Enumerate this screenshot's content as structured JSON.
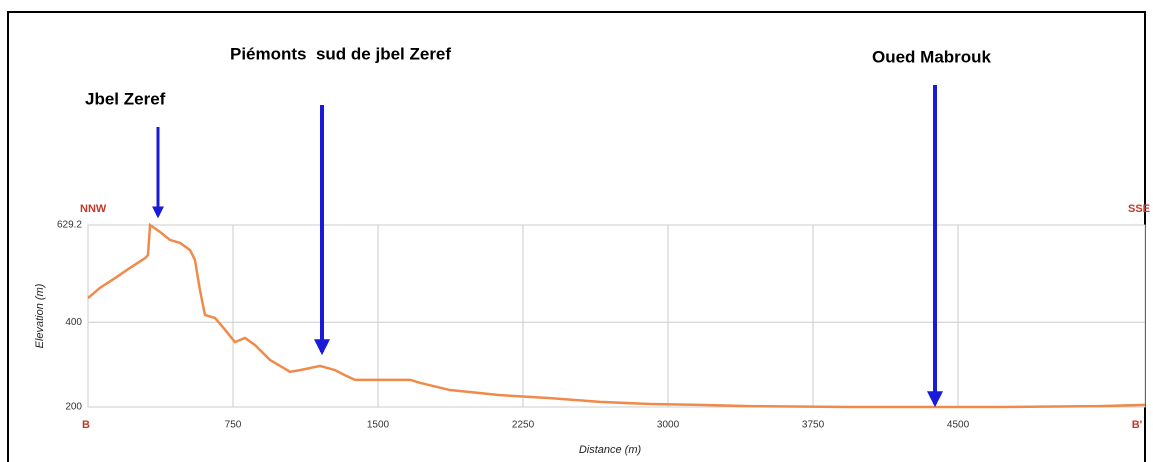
{
  "chart_data": {
    "type": "line",
    "xlabel": "Distance (m)",
    "ylabel": "Elevation (m)",
    "left_label": "NNW",
    "right_label": "SSE",
    "annotations": [
      "Jbel Zeref",
      "Piémonts  sud de jbel Zeref",
      "Oued Mabrouk"
    ],
    "xlim": [
      0,
      5467
    ],
    "ylim": [
      200,
      629.2
    ],
    "xticks": [
      {
        "value": 0,
        "label": "B"
      },
      750,
      1500,
      2250,
      3000,
      3750,
      4500,
      {
        "value": 5467,
        "label": "B'"
      }
    ],
    "yticks": [
      200,
      400,
      629.2
    ],
    "grid": true,
    "series": [
      {
        "name": "Elevation",
        "color": "#f08a4b",
        "x": [
          0,
          62,
          140,
          217,
          295,
          310,
          321,
          372,
          424,
          476,
          528,
          553,
          579,
          605,
          657,
          709,
          760,
          812,
          864,
          941,
          1045,
          1097,
          1200,
          1278,
          1329,
          1381,
          1666,
          1717,
          1872,
          2131,
          2390,
          2648,
          2907,
          3166,
          3424,
          3941,
          4717,
          5234,
          5467
        ],
        "values": [
          457,
          481,
          504,
          528,
          551,
          558,
          629.2,
          613,
          594,
          587,
          570,
          547,
          476,
          417,
          410,
          382,
          353,
          363,
          346,
          311,
          283,
          287,
          297,
          287,
          275,
          264,
          264,
          257,
          240,
          228,
          221,
          212,
          207,
          205,
          202,
          200,
          200,
          202,
          205
        ]
      }
    ]
  }
}
